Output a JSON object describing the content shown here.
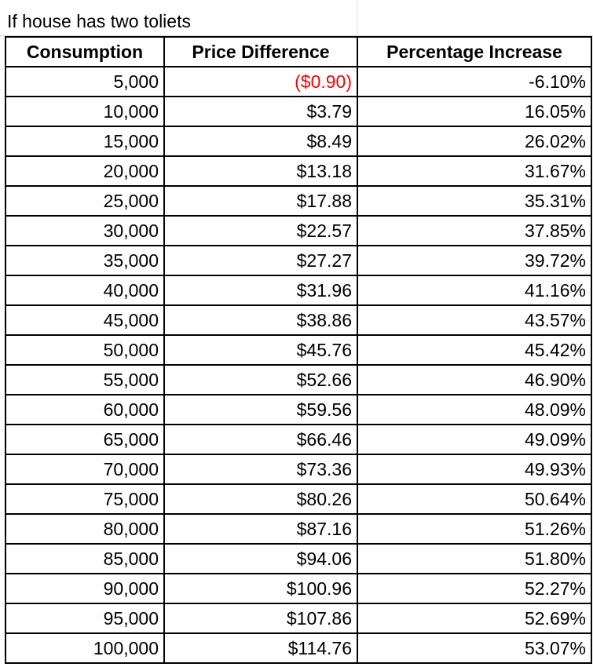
{
  "title": "If house has two toliets",
  "columns": [
    "Consumption",
    "Price Difference",
    "Percentage Increase"
  ],
  "rows": [
    [
      "5,000",
      "($0.90)",
      "-6.10%"
    ],
    [
      "10,000",
      "$3.79",
      "16.05%"
    ],
    [
      "15,000",
      "$8.49",
      "26.02%"
    ],
    [
      "20,000",
      "$13.18",
      "31.67%"
    ],
    [
      "25,000",
      "$17.88",
      "35.31%"
    ],
    [
      "30,000",
      "$22.57",
      "37.85%"
    ],
    [
      "35,000",
      "$27.27",
      "39.72%"
    ],
    [
      "40,000",
      "$31.96",
      "41.16%"
    ],
    [
      "45,000",
      "$38.86",
      "43.57%"
    ],
    [
      "50,000",
      "$45.76",
      "45.42%"
    ],
    [
      "55,000",
      "$52.66",
      "46.90%"
    ],
    [
      "60,000",
      "$59.56",
      "48.09%"
    ],
    [
      "65,000",
      "$66.46",
      "49.09%"
    ],
    [
      "70,000",
      "$73.36",
      "49.93%"
    ],
    [
      "75,000",
      "$80.26",
      "50.64%"
    ],
    [
      "80,000",
      "$87.16",
      "51.26%"
    ],
    [
      "85,000",
      "$94.06",
      "51.80%"
    ],
    [
      "90,000",
      "$100.96",
      "52.27%"
    ],
    [
      "95,000",
      "$107.86",
      "52.69%"
    ],
    [
      "100,000",
      "$114.76",
      "53.07%"
    ]
  ],
  "colors": {
    "negative": "#ff0000",
    "border": "#000000",
    "gridline": "#d9d9d9"
  }
}
